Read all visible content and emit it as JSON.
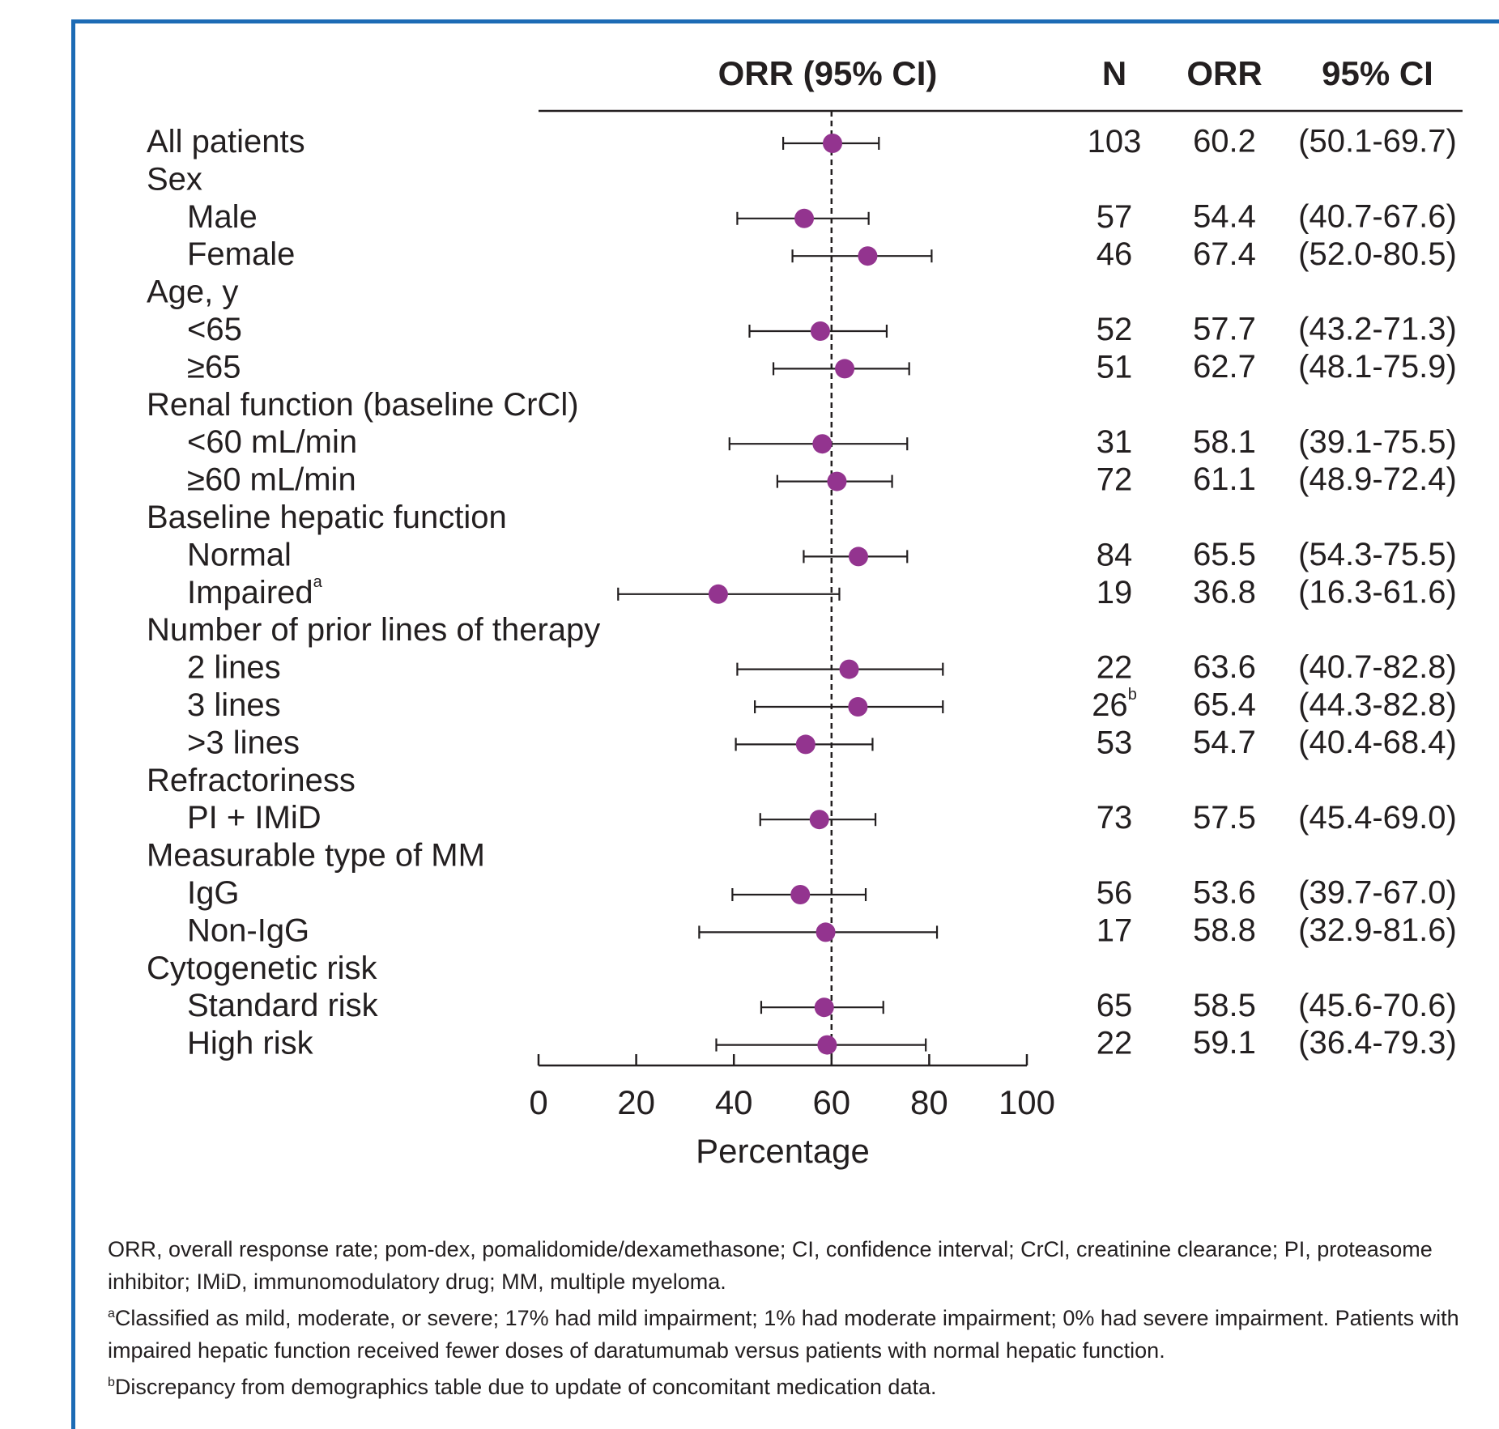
{
  "chart_data": {
    "type": "forest",
    "column_headers": [
      "ORR (95% CI)",
      "N",
      "ORR",
      "95% CI"
    ],
    "categories": [
      "All patients",
      "Sex",
      "Male",
      "Female",
      "Age, y",
      "<65",
      "≥65",
      "Renal function (baseline CrCl)",
      "<60 mL/min",
      "≥60 mL/min",
      "Baseline hepatic function",
      "Normal",
      "Impaired",
      "Number of prior lines of therapy",
      "2 lines",
      "3 lines",
      ">3 lines",
      "Refractoriness",
      "PI + IMiD",
      "Measurable type of MM",
      "IgG",
      "Non-IgG",
      "Cytogenetic risk",
      "Standard risk",
      "High risk"
    ],
    "indented": [
      false,
      false,
      true,
      true,
      false,
      true,
      true,
      false,
      true,
      true,
      false,
      true,
      true,
      false,
      true,
      true,
      true,
      false,
      true,
      false,
      true,
      true,
      false,
      true,
      true
    ],
    "category_superscripts": [
      null,
      null,
      null,
      null,
      null,
      null,
      null,
      null,
      null,
      null,
      null,
      null,
      "a",
      null,
      null,
      null,
      null,
      null,
      null,
      null,
      null,
      null,
      null,
      null,
      null
    ],
    "n": [
      103,
      null,
      57,
      46,
      null,
      52,
      51,
      null,
      31,
      72,
      null,
      84,
      19,
      null,
      22,
      26,
      53,
      null,
      73,
      null,
      56,
      17,
      null,
      65,
      22
    ],
    "n_superscripts": [
      null,
      null,
      null,
      null,
      null,
      null,
      null,
      null,
      null,
      null,
      null,
      null,
      null,
      null,
      null,
      "b",
      null,
      null,
      null,
      null,
      null,
      null,
      null,
      null,
      null
    ],
    "values": [
      60.2,
      null,
      54.4,
      67.4,
      null,
      57.7,
      62.7,
      null,
      58.1,
      61.1,
      null,
      65.5,
      36.8,
      null,
      63.6,
      65.4,
      54.7,
      null,
      57.5,
      null,
      53.6,
      58.8,
      null,
      58.5,
      59.1
    ],
    "ci": [
      [
        50.1,
        69.7
      ],
      null,
      [
        40.7,
        67.6
      ],
      [
        52.0,
        80.5
      ],
      null,
      [
        43.2,
        71.3
      ],
      [
        48.1,
        75.9
      ],
      null,
      [
        39.1,
        75.5
      ],
      [
        48.9,
        72.4
      ],
      null,
      [
        54.3,
        75.5
      ],
      [
        16.3,
        61.6
      ],
      null,
      [
        40.7,
        82.8
      ],
      [
        44.3,
        82.8
      ],
      [
        40.4,
        68.4
      ],
      null,
      [
        45.4,
        69.0
      ],
      null,
      [
        39.7,
        67.0
      ],
      [
        32.9,
        81.6
      ],
      null,
      [
        45.6,
        70.6
      ],
      [
        36.4,
        79.3
      ]
    ],
    "ci_labels": [
      "(50.1-69.7)",
      null,
      "(40.7-67.6)",
      "(52.0-80.5)",
      null,
      "(43.2-71.3)",
      "(48.1-75.9)",
      null,
      "(39.1-75.5)",
      "(48.9-72.4)",
      null,
      "(54.3-75.5)",
      "(16.3-61.6)",
      null,
      "(40.7-82.8)",
      "(44.3-82.8)",
      "(40.4-68.4)",
      null,
      "(45.4-69.0)",
      null,
      "(39.7-67.0)",
      "(32.9-81.6)",
      null,
      "(45.6-70.6)",
      "(36.4-79.3)"
    ],
    "color": "#93348f",
    "xlim": [
      0,
      100
    ],
    "xticks": [
      0,
      20,
      40,
      60,
      80,
      100
    ],
    "xlabel": "Percentage",
    "reference_line": 60,
    "footnotes": [
      {
        "text": "ORR, overall response rate; pom-dex, pomalidomide/dexamethasone; CI, confidence interval; CrCl, creatinine clearance; PI, proteasome inhibitor; IMiD, immunomodulatory drug; MM, multiple myeloma."
      },
      {
        "mark": "a",
        "text": "Classified as mild, moderate, or severe; 17% had mild impairment; 1% had moderate impairment; 0% had severe impairment. Patients with impaired hepatic function received fewer doses of daratumumab versus patients with normal hepatic function."
      },
      {
        "mark": "b",
        "text": "Discrepancy from demographics table due to update of concomitant medication data."
      }
    ]
  }
}
